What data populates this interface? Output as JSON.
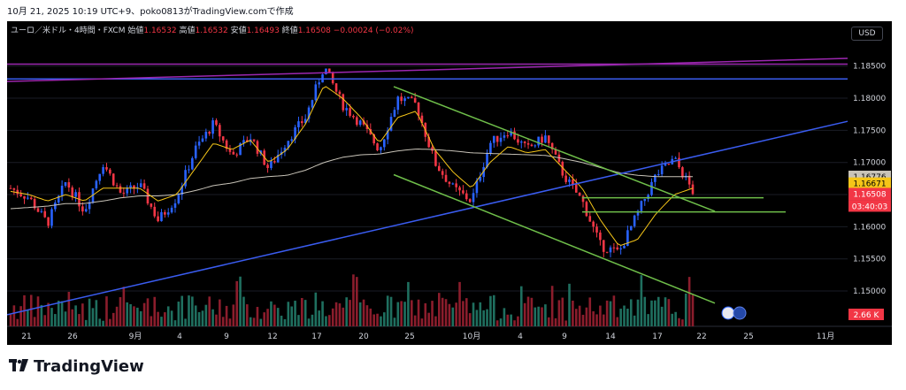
{
  "caption": "10月 21, 2025 10:19 UTC+9、poko0813がTradingView.comで作成",
  "header": {
    "symbol": "ユーロ／米ドル・4時間・FXCM",
    "open_label": "始値",
    "open": "1.16532",
    "high_label": "高値",
    "high": "1.16532",
    "low_label": "安値",
    "low": "1.16493",
    "close_label": "終値",
    "close": "1.16508",
    "change": "−0.00024 (−0.02%)"
  },
  "currency_button": "USD",
  "footer": {
    "logo_text": "TradingView"
  },
  "colors": {
    "up": "#2962ff",
    "down": "#f23645",
    "ma_fast": "#f5c518",
    "ma_slow": "#c8c3b8",
    "channel": "#6fbf4a",
    "trendline": "#3a5cf0",
    "purple": "#9c27b0",
    "volume_up": "#1f6f5f",
    "volume_down": "#8b1d2c"
  },
  "chart_data": {
    "type": "candlestick",
    "title": "ユーロ／米ドル・4時間・FXCM",
    "ylim": [
      1.1445,
      1.1895
    ],
    "y_ticks": [
      "1.18500",
      "1.18000",
      "1.17500",
      "1.17000",
      "1.16500",
      "1.16000",
      "1.15500",
      "1.15000"
    ],
    "x_ticks": [
      "21",
      "26",
      "9月",
      "4",
      "9",
      "12",
      "17",
      "20",
      "25",
      "10月",
      "4",
      "9",
      "14",
      "17",
      "22",
      "25",
      "11月"
    ],
    "anchor_prices": [
      1.166,
      1.1645,
      1.1605,
      1.167,
      1.1625,
      1.17,
      1.165,
      1.1665,
      1.161,
      1.1645,
      1.172,
      1.176,
      1.171,
      1.174,
      1.169,
      1.1735,
      1.177,
      1.185,
      1.179,
      1.176,
      1.172,
      1.18,
      1.179,
      1.17,
      1.166,
      1.164,
      1.173,
      1.175,
      1.172,
      1.174,
      1.168,
      1.164,
      1.157,
      1.156,
      1.162,
      1.168,
      1.1705,
      1.1655
    ],
    "series": [
      {
        "name": "",
        "type": "moving_average",
        "values": [
          1.1655,
          1.165,
          1.164,
          1.165,
          1.164,
          1.166,
          1.166,
          1.166,
          1.164,
          1.165,
          1.169,
          1.173,
          1.172,
          1.1735,
          1.17,
          1.172,
          1.176,
          1.182,
          1.18,
          1.177,
          1.173,
          1.177,
          1.178,
          1.172,
          1.1685,
          1.166,
          1.17,
          1.1725,
          1.1715,
          1.172,
          1.169,
          1.166,
          1.161,
          1.157,
          1.158,
          1.162,
          1.165,
          1.166
        ]
      },
      {
        "name": "",
        "type": "moving_average",
        "values": [
          1.1628,
          1.163,
          1.1632,
          1.1636,
          1.1636,
          1.164,
          1.1645,
          1.1648,
          1.1648,
          1.165,
          1.1656,
          1.1664,
          1.1668,
          1.1675,
          1.1678,
          1.168,
          1.1688,
          1.17,
          1.1708,
          1.1712,
          1.1713,
          1.1718,
          1.1721,
          1.172,
          1.1718,
          1.1715,
          1.1714,
          1.1713,
          1.1712,
          1.1711,
          1.1706,
          1.17,
          1.1692,
          1.1684,
          1.168,
          1.1678,
          1.1678,
          1.1678
        ]
      }
    ],
    "lines": [
      {
        "name": "",
        "type": "horizontal",
        "price": 1.183
      },
      {
        "name": "",
        "type": "horizontal",
        "price": 1.1645
      },
      {
        "name": "",
        "type": "horizontal",
        "price": 1.1623
      }
    ],
    "price_labels": [
      "1.16776",
      "1.16671",
      "1.16508",
      "03:40:03"
    ],
    "volume_label": "2.66 K"
  }
}
